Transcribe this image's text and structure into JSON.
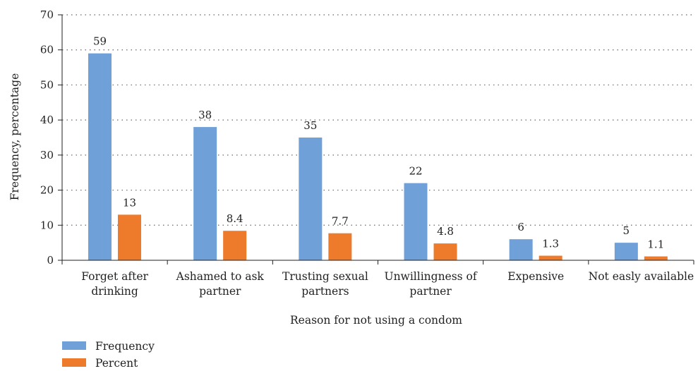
{
  "chart_data": {
    "type": "bar",
    "xlabel": "Reason for not using a condom",
    "ylabel": "Frequency, percentage",
    "ylim": [
      0,
      70
    ],
    "yticks": [
      0,
      10,
      20,
      30,
      40,
      50,
      60,
      70
    ],
    "grid": "horizontal dotted",
    "legend_position": "bottom-left",
    "categories": [
      [
        "Forget after",
        "drinking"
      ],
      [
        "Ashamed to ask",
        "partner"
      ],
      [
        "Trusting sexual",
        "partners"
      ],
      [
        "Unwillingness of",
        "partner"
      ],
      [
        "Expensive"
      ],
      [
        "Not easly available"
      ]
    ],
    "series": [
      {
        "name": "Frequency",
        "color": "#70a0d8",
        "values": [
          59,
          38,
          35,
          22,
          6,
          5
        ],
        "labels": [
          "59",
          "38",
          "35",
          "22",
          "6",
          "5"
        ]
      },
      {
        "name": "Percent",
        "color": "#ee7b2c",
        "values": [
          13,
          8.4,
          7.7,
          4.8,
          1.3,
          1.1
        ],
        "labels": [
          "13",
          "8.4",
          "7.7",
          "4.8",
          "1.3",
          "1.1"
        ]
      }
    ]
  }
}
